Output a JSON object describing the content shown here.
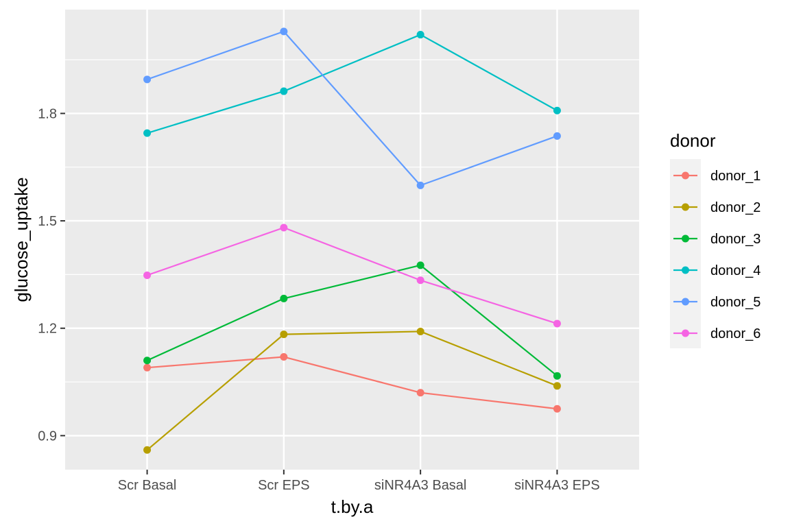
{
  "chart_data": {
    "type": "line",
    "title": "",
    "xlabel": "t.by.a",
    "ylabel": "glucose_uptake",
    "categories": [
      "Scr Basal",
      "Scr EPS",
      "siNR4A3 Basal",
      "siNR4A3 EPS"
    ],
    "ylim": [
      0.805,
      2.09
    ],
    "yticks": [
      0.9,
      1.2,
      1.5,
      1.8
    ],
    "ytick_labels": [
      "0.9",
      "1.2",
      "1.5",
      "1.8"
    ],
    "grid": true,
    "legend": {
      "title": "donor",
      "position": "right"
    },
    "series": [
      {
        "name": "donor_1",
        "color": "#F8766D",
        "values": [
          1.09,
          1.12,
          1.02,
          0.975
        ]
      },
      {
        "name": "donor_2",
        "color": "#B79F00",
        "values": [
          0.86,
          1.183,
          1.191,
          1.039
        ]
      },
      {
        "name": "donor_3",
        "color": "#00BA38",
        "values": [
          1.11,
          1.283,
          1.376,
          1.067
        ]
      },
      {
        "name": "donor_4",
        "color": "#00BFC4",
        "values": [
          1.745,
          1.862,
          2.02,
          1.808
        ]
      },
      {
        "name": "donor_5",
        "color": "#619CFF",
        "values": [
          1.895,
          2.029,
          1.599,
          1.737
        ]
      },
      {
        "name": "donor_6",
        "color": "#F564E3",
        "values": [
          1.348,
          1.481,
          1.334,
          1.213
        ]
      }
    ]
  }
}
